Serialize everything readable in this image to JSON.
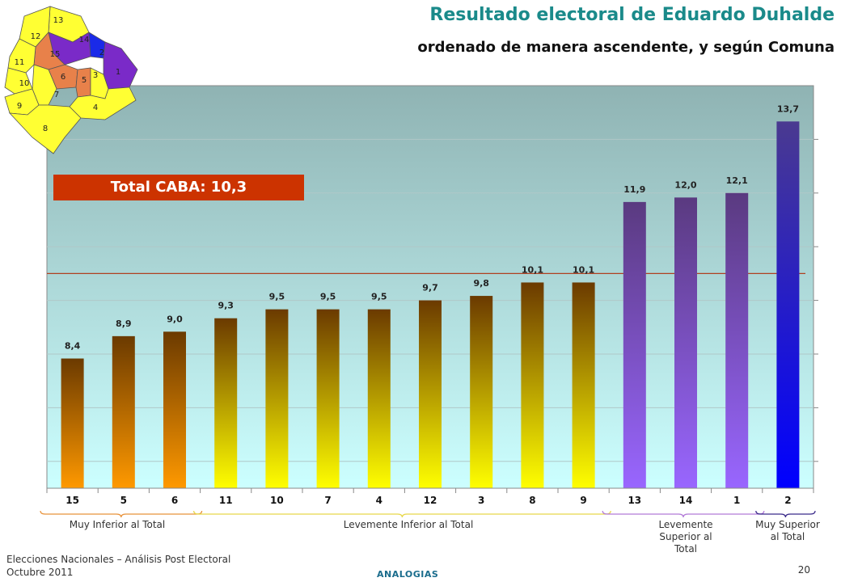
{
  "header": {
    "title": "Resultado electoral de Eduardo Duhalde",
    "subtitle": "ordenado de manera ascendente, y según Comuna"
  },
  "total_label": "Total CABA: 10,3",
  "footer": {
    "line1": "Elecciones Nacionales – Análisis Post Electoral",
    "line2": "Octubre 2011",
    "brand": "ANALOGIAS",
    "page": "20"
  },
  "groups": [
    {
      "label": "Muy Inferior al Total",
      "color": "#e8923a"
    },
    {
      "label": "Levemente Inferior al Total",
      "color": "#e8d84a"
    },
    {
      "label": "Levemente Superior al Total",
      "color": "#b27ad8"
    },
    {
      "label": "Muy Superior al Total",
      "color": "#3a2a8a"
    }
  ],
  "map": {
    "comunas": [
      "1",
      "2",
      "3",
      "4",
      "5",
      "6",
      "7",
      "8",
      "9",
      "10",
      "11",
      "12",
      "13",
      "14",
      "15"
    ],
    "colors": {
      "yellow": "#ffff33",
      "orange": "#e8814a",
      "purple": "#7a2ac8",
      "blue": "#1a2ae8"
    }
  },
  "chart_data": {
    "type": "bar",
    "categories": [
      "15",
      "5",
      "6",
      "11",
      "10",
      "7",
      "4",
      "12",
      "3",
      "8",
      "9",
      "13",
      "14",
      "1",
      "2"
    ],
    "values": [
      8.4,
      8.9,
      9.0,
      9.3,
      9.5,
      9.5,
      9.5,
      9.7,
      9.8,
      10.1,
      10.1,
      11.9,
      12.0,
      12.1,
      13.7
    ],
    "labels": [
      "8,4",
      "8,9",
      "9,0",
      "9,3",
      "9,5",
      "9,5",
      "9,5",
      "9,7",
      "9,8",
      "10,1",
      "10,1",
      "11,9",
      "12,0",
      "12,1",
      "13,7"
    ],
    "bar_groups": [
      "orange",
      "orange",
      "orange",
      "yellow",
      "yellow",
      "yellow",
      "yellow",
      "yellow",
      "yellow",
      "yellow",
      "yellow",
      "purple",
      "purple",
      "purple",
      "blue"
    ],
    "reference_value": 10.3,
    "ylim": [
      5.5,
      14.5
    ],
    "grid": true,
    "bar_colors": {
      "orange": {
        "top": "#6b3a00",
        "bottom": "#ff9900"
      },
      "yellow": {
        "top": "#6b3a00",
        "bottom": "#ffff00"
      },
      "purple": {
        "top": "#5a3a80",
        "bottom": "#9966ff"
      },
      "blue": {
        "top": "#4a3a90",
        "bottom": "#0000ff"
      }
    }
  }
}
